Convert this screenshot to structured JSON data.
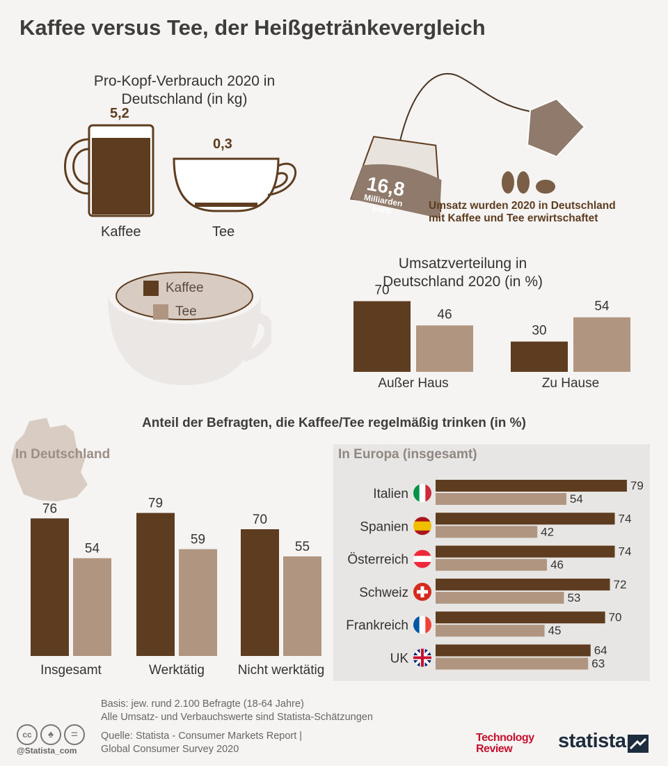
{
  "title": "Kaffee versus Tee, der Heißgetränkevergleich",
  "colors": {
    "kaffee": "#5e3c20",
    "tee": "#b09580",
    "cup_outline": "#5e3c20",
    "bg": "#f5f4f3",
    "panel": "#e8e6e5"
  },
  "consumption": {
    "heading": "Pro-Kopf-Verbrauch 2020 in Deutschland (in kg)",
    "kaffee": {
      "label": "Kaffee",
      "value": "5,2"
    },
    "tee": {
      "label": "Tee",
      "value": "0,3"
    }
  },
  "revenue": {
    "amount": "16,8",
    "unit_line1": "Milliarden",
    "unit_line2": "Euro",
    "caption_line1": "Umsatz wurden 2020 in Deutschland",
    "caption_line2": "mit Kaffee und Tee erwirtschaftet"
  },
  "legend": {
    "kaffee": "Kaffee",
    "tee": "Tee"
  },
  "survey_heading": "Anteil der Befragten, die Kaffee/Tee regelmäßig trinken (in %)",
  "germany_heading": "In Deutschland",
  "europe_heading": "In Europa (insgesamt)",
  "footer": {
    "line1": "Basis: jew. rund 2.100 Befragte (18-64 Jahre)",
    "line2": "Alle Umsatz- und Verbauchswerte sind Statista-Schätzungen",
    "line3": "Quelle: Statista - Consumer Markets Report |",
    "line4": "Global Consumer Survey 2020",
    "handle": "@Statista_com",
    "tr_line1": "Technology",
    "tr_line2": "Review",
    "statista": "statista"
  },
  "chart_data": [
    {
      "type": "bar",
      "title": "Pro-Kopf-Verbrauch 2020 in Deutschland (in kg)",
      "categories": [
        "Kaffee",
        "Tee"
      ],
      "values": [
        5.2,
        0.3
      ]
    },
    {
      "type": "bar",
      "title": "Umsatzverteilung in Deutschland 2020 (in %)",
      "categories": [
        "Außer Haus",
        "Zu Hause"
      ],
      "series": [
        {
          "name": "Kaffee",
          "values": [
            70,
            30
          ]
        },
        {
          "name": "Tee",
          "values": [
            46,
            54
          ]
        }
      ]
    },
    {
      "type": "bar",
      "title": "In Deutschland",
      "categories": [
        "Insgesamt",
        "Werktätig",
        "Nicht werktätig"
      ],
      "series": [
        {
          "name": "Kaffee",
          "values": [
            76,
            79,
            70
          ]
        },
        {
          "name": "Tee",
          "values": [
            54,
            59,
            55
          ]
        }
      ]
    },
    {
      "type": "bar",
      "title": "In Europa (insgesamt)",
      "orientation": "horizontal",
      "categories": [
        "Italien",
        "Spanien",
        "Österreich",
        "Schweiz",
        "Frankreich",
        "UK"
      ],
      "series": [
        {
          "name": "Kaffee",
          "values": [
            79,
            74,
            74,
            72,
            70,
            64
          ]
        },
        {
          "name": "Tee",
          "values": [
            54,
            42,
            46,
            53,
            45,
            63
          ]
        }
      ]
    }
  ]
}
